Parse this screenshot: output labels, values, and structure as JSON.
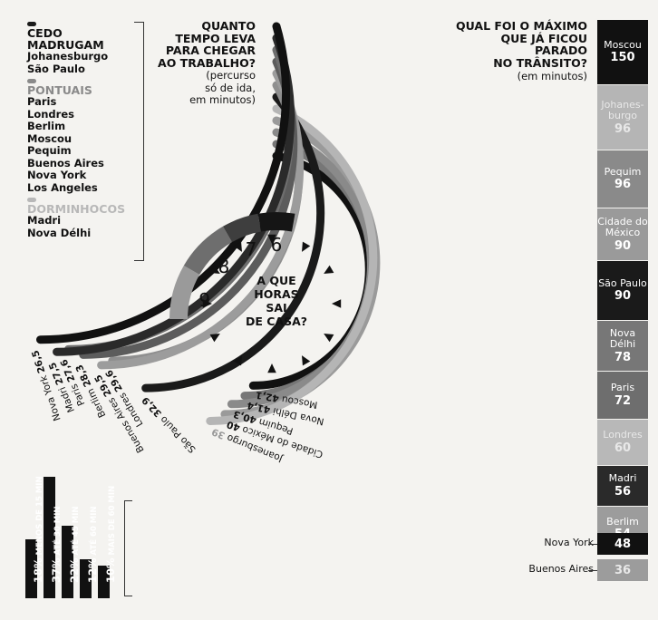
{
  "legend": {
    "groups": [
      {
        "heading": "CEDO",
        "heading2": "MADRUGAM",
        "color": "#1a1a1a",
        "items": [
          "Johanesburgo",
          "São Paulo"
        ]
      },
      {
        "heading": "PONTUAIS",
        "heading2": "",
        "color": "#8a8a8a",
        "items": [
          "Paris",
          "Londres",
          "Berlim",
          "Moscou",
          "Pequim",
          "Buenos Aires",
          "Nova York",
          "Los Angeles"
        ]
      },
      {
        "heading": "DORMINHOCOS",
        "heading2": "",
        "color": "#b8b8b8",
        "items": [
          "Madri",
          "Nova Délhi"
        ]
      }
    ]
  },
  "commute_title": {
    "lines": [
      "QUANTO",
      "TEMPO LEVA",
      "PARA CHEGAR",
      "AO TRABALHO?"
    ],
    "sub": [
      "(percurso",
      "só de ida,",
      "em minutos)"
    ]
  },
  "max_title": {
    "lines": [
      "QUAL FOI O MÁXIMO",
      "QUE JÁ FICOU",
      "PARADO",
      "NO TRÂNSITO?"
    ],
    "sub": "(em minutos)"
  },
  "center_question": [
    "A QUE",
    "HORAS",
    "SAI",
    "DE CASA?"
  ],
  "clock_hours": [
    "9",
    "8",
    "7",
    "6"
  ],
  "chart_data": [
    {
      "type": "bar",
      "title": "QUANTO TEMPO LEVA PARA CHEGAR AO TRABALHO? (percurso só de ida, em minutos)",
      "categories": [
        "Moscou",
        "Nova Délhi",
        "Pequim",
        "Cidade do México",
        "Joanesburgo",
        "São Paulo",
        "Londres",
        "Buenos Aires",
        "Berlim",
        "Paris",
        "Madri",
        "Nova York"
      ],
      "values": [
        42.1,
        41.4,
        40.3,
        40,
        39,
        32.9,
        29.6,
        29.5,
        28.3,
        27.6,
        27.5,
        26.5
      ],
      "labels": [
        "42,1",
        "41,4",
        "40,3",
        "40",
        "39",
        "32,9",
        "29,6",
        "29,5",
        "28,3",
        "27,6",
        "27,5",
        "26,5"
      ],
      "colors": [
        "#111111",
        "#777777",
        "#8a8a8a",
        "#9a9a9a",
        "#b5b5b5",
        "#1a1a1a",
        "#8f8f8f",
        "#9c9c9c",
        "#5c5c5c",
        "#6e6e6e",
        "#2a2a2a",
        "#111111"
      ]
    },
    {
      "type": "bar",
      "title": "QUAL FOI O MÁXIMO QUE JÁ FICOU PARADO NO TRÂNSITO? (em minutos)",
      "categories": [
        "Moscou",
        "Johanes-burgo",
        "Pequim",
        "Cidade do México",
        "São Paulo",
        "Nova Délhi",
        "Paris",
        "Londres",
        "Madri",
        "Berlim",
        "Nova York",
        "Buenos Aires"
      ],
      "values": [
        150,
        96,
        96,
        90,
        90,
        78,
        72,
        60,
        56,
        54,
        48,
        36
      ],
      "colors": [
        "#111111",
        "#b5b5b5",
        "#8a8a8a",
        "#9a9a9a",
        "#1a1a1a",
        "#777777",
        "#6e6e6e",
        "#b8b8b8",
        "#2a2a2a",
        "#9c9c9c",
        "#111111",
        "#9c9c9c"
      ]
    },
    {
      "type": "bar",
      "categories": [
        "MENOS DE 15 MIN",
        "ATÉ 30 MIN",
        "ATÉ 45 MIN",
        "ATÉ 60 MIN",
        "MAIS DE 60 MIN"
      ],
      "values": [
        18,
        37,
        22,
        12,
        10
      ],
      "labels": [
        "18%",
        "37%",
        "22%",
        "12%",
        "10%"
      ],
      "colors": [
        "#111111",
        "#111111",
        "#111111",
        "#111111",
        "#111111"
      ]
    },
    {
      "type": "pie",
      "title": "A QUE HORAS SAI DE CASA?",
      "categories": [
        "9",
        "8",
        "7",
        "6"
      ],
      "colors": [
        "#9a9a9a",
        "#6e6e6e",
        "#3e3e3e",
        "#151515"
      ]
    }
  ]
}
